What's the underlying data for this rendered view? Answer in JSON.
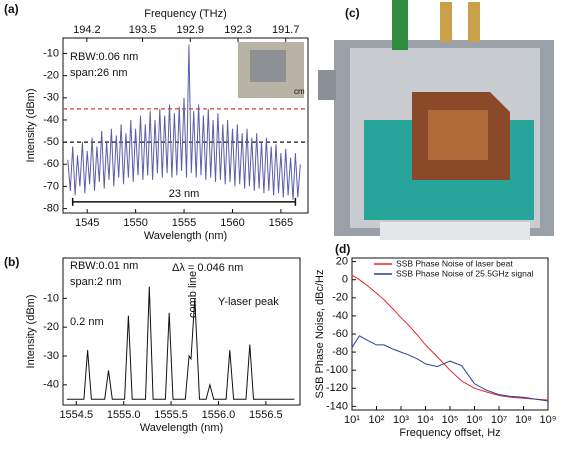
{
  "image_panel": {
    "label": "(c)"
  },
  "chart_data": [
    {
      "type": "line",
      "label": "(a)",
      "xlabel": "Wavelength (nm)",
      "ylabel": "Intensity (dBm)",
      "x2label": "Frequency (THz)",
      "xlim": [
        1542.5,
        1567.8
      ],
      "ylim": [
        -82,
        -3
      ],
      "xticks": [
        1545,
        1550,
        1555,
        1560,
        1565
      ],
      "yticks": [
        -80,
        -70,
        -60,
        -50,
        -40,
        -30,
        -20,
        -10
      ],
      "x2lim": [
        194.5,
        191.42
      ],
      "x2ticks": [
        194.2,
        193.5,
        192.9,
        192.3,
        191.7
      ],
      "annotations": [
        "RBW:0.06 nm",
        "span:26 nm"
      ],
      "inset_label": "cm",
      "hlines": [
        {
          "value": -35,
          "color": "#e03a2e"
        },
        {
          "value": -50,
          "color": "#111111"
        }
      ],
      "span": {
        "label": "23 nm",
        "x": [
          1543.5,
          1566.5
        ],
        "y": -77
      },
      "x": [
        1543,
        1543.25,
        1543.5,
        1543.75,
        1544,
        1544.25,
        1544.5,
        1544.75,
        1545,
        1545.25,
        1545.5,
        1545.75,
        1546,
        1546.25,
        1546.5,
        1546.75,
        1547,
        1547.25,
        1547.5,
        1547.75,
        1548,
        1548.25,
        1548.5,
        1548.75,
        1549,
        1549.25,
        1549.5,
        1549.75,
        1550,
        1550.25,
        1550.5,
        1550.75,
        1551,
        1551.25,
        1551.5,
        1551.75,
        1552,
        1552.25,
        1552.5,
        1552.75,
        1553,
        1553.25,
        1553.5,
        1553.75,
        1554,
        1554.25,
        1554.5,
        1554.75,
        1555,
        1555.25,
        1555.5,
        1555.75,
        1556,
        1556.25,
        1556.5,
        1556.75,
        1557,
        1557.25,
        1557.5,
        1557.75,
        1558,
        1558.25,
        1558.5,
        1558.75,
        1559,
        1559.25,
        1559.5,
        1559.75,
        1560,
        1560.25,
        1560.5,
        1560.75,
        1561,
        1561.25,
        1561.5,
        1561.75,
        1562,
        1562.25,
        1562.5,
        1562.75,
        1563,
        1563.25,
        1563.5,
        1563.75,
        1564,
        1564.25,
        1564.5,
        1564.75,
        1565,
        1565.25,
        1565.5,
        1565.75,
        1566,
        1566.25,
        1566.5,
        1566.75,
        1567
      ],
      "series": [
        {
          "color": "#5b5fa8",
          "values": [
            -58,
            -72,
            -52,
            -74,
            -56,
            -70,
            -50,
            -73,
            -54,
            -69,
            -48,
            -72,
            -52,
            -68,
            -45,
            -71,
            -50,
            -67,
            -44,
            -70,
            -47,
            -66,
            -42,
            -69,
            -46,
            -66,
            -40,
            -68,
            -44,
            -65,
            -38,
            -67,
            -42,
            -65,
            -36,
            -67,
            -40,
            -64,
            -35,
            -66,
            -38,
            -64,
            -33,
            -66,
            -37,
            -65,
            -34,
            -63,
            -30,
            -66,
            -6,
            -64,
            -36,
            -66,
            -33,
            -65,
            -38,
            -67,
            -35,
            -66,
            -40,
            -68,
            -37,
            -67,
            -42,
            -69,
            -40,
            -68,
            -44,
            -70,
            -42,
            -69,
            -46,
            -71,
            -44,
            -70,
            -48,
            -72,
            -46,
            -71,
            -50,
            -73,
            -48,
            -72,
            -52,
            -74,
            -51,
            -73,
            -55,
            -75,
            -53,
            -74,
            -57,
            -76,
            -55,
            -75,
            -60
          ]
        }
      ]
    },
    {
      "type": "line",
      "label": "(b)",
      "xlabel": "Wavelength (nm)",
      "ylabel": "Intensity (dBm)",
      "xlim": [
        1554.36,
        1556.86
      ],
      "ylim": [
        -47,
        4
      ],
      "xticks": [
        1554.5,
        {
          "value": 1555,
          "label": "1555.0"
        },
        1555.5,
        {
          "value": 1556,
          "label": "1556.0"
        },
        1556.5
      ],
      "yticks": [
        -40,
        -30,
        -20,
        -10
      ],
      "annotations": [
        "RBW:0.01 nm",
        "span:2 nm",
        "0.2 nm",
        "Δλ = 0.046 nm",
        "comb line",
        "Y-laser peak"
      ],
      "x": [
        1554.4,
        1554.58,
        1554.62,
        1554.66,
        1554.8,
        1554.84,
        1554.88,
        1555.01,
        1555.05,
        1555.09,
        1555.23,
        1555.27,
        1555.31,
        1555.44,
        1555.48,
        1555.52,
        1555.65,
        1555.69,
        1555.71,
        1555.75,
        1555.8,
        1555.87,
        1555.91,
        1555.95,
        1556.08,
        1556.12,
        1556.16,
        1556.29,
        1556.33,
        1556.37,
        1556.8
      ],
      "series": [
        {
          "color": "#111111",
          "values": [
            -45,
            -45,
            -28,
            -45,
            -45,
            -35,
            -45,
            -45,
            -16,
            -45,
            -45,
            -6,
            -45,
            -45,
            -15,
            -45,
            -45,
            -30,
            -31,
            -10,
            -45,
            -45,
            -40,
            -45,
            -45,
            -28,
            -45,
            -45,
            -26,
            -45,
            -45
          ]
        }
      ]
    },
    {
      "type": "line",
      "label": "(d)",
      "xlabel": "Frequency offset, Hz",
      "ylabel": "SSB Phase Noise, dBc/Hz",
      "xscale": "log",
      "xlim": [
        10,
        1000000000
      ],
      "ylim": [
        -144,
        24
      ],
      "xticks": [
        {
          "value": 10,
          "label": "10¹"
        },
        {
          "value": 100,
          "label": "10²"
        },
        {
          "value": 1000,
          "label": "10³"
        },
        {
          "value": 10000,
          "label": "10⁴"
        },
        {
          "value": 100000,
          "label": "10⁵"
        },
        {
          "value": 1000000,
          "label": "10⁶"
        },
        {
          "value": 10000000,
          "label": "10⁷"
        },
        {
          "value": 100000000,
          "label": "10⁸"
        },
        {
          "value": 1000000000,
          "label": "10⁹"
        }
      ],
      "yticks": [
        20,
        0,
        -20,
        -40,
        -60,
        -80,
        -100,
        -120,
        -140
      ],
      "x": [
        10,
        20,
        50,
        100,
        200,
        500,
        1000,
        2000,
        5000,
        10000,
        30000,
        100000,
        300000,
        1000000,
        3000000,
        10000000,
        30000000,
        100000000,
        300000000,
        1000000000
      ],
      "series": [
        {
          "name": "SSB Phase Noise of laser beat",
          "color": "#e8262b",
          "values": [
            5,
            0,
            -8,
            -15,
            -22,
            -33,
            -42,
            -50,
            -62,
            -72,
            -85,
            -100,
            -112,
            -120,
            -124,
            -128,
            -130,
            -131,
            -132,
            -133
          ]
        },
        {
          "name": "SSB Phase Noise of 25.5GHz signal",
          "color": "#27449a",
          "values": [
            -75,
            -62,
            -68,
            -72,
            -72,
            -77,
            -80,
            -83,
            -88,
            -93,
            -96,
            -90,
            -95,
            -115,
            -122,
            -127,
            -129,
            -130,
            -132,
            -134
          ]
        }
      ]
    }
  ]
}
